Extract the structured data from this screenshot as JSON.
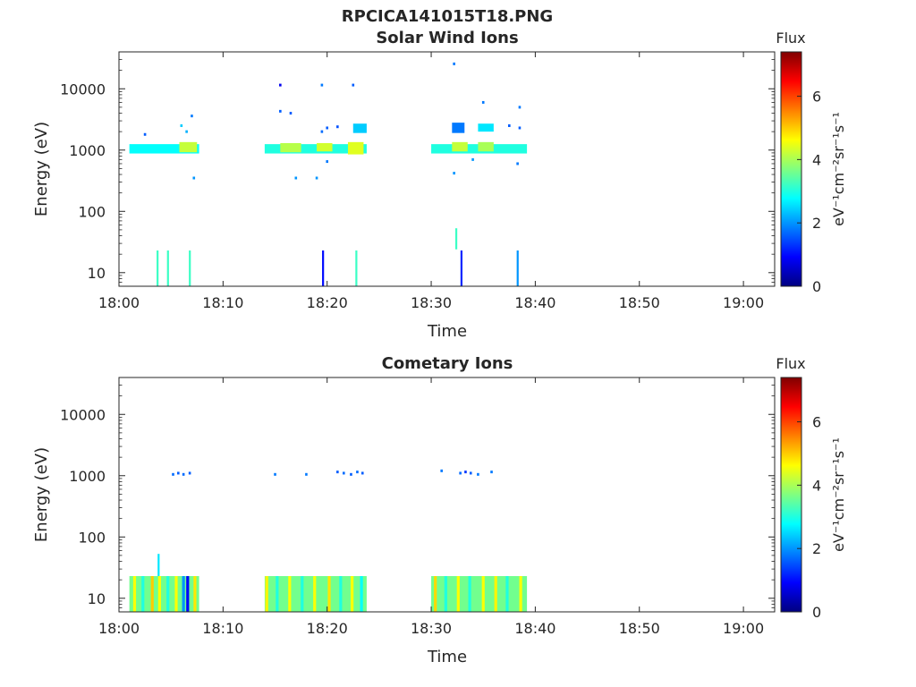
{
  "figure": {
    "title": "RPCICA141015T18.PNG"
  },
  "colormap": {
    "stops": [
      "#000080",
      "#0000ff",
      "#0080ff",
      "#00ffff",
      "#80ff80",
      "#ffff00",
      "#ff8000",
      "#ff0000",
      "#800000"
    ]
  },
  "chart_data": [
    {
      "type": "heatmap",
      "title": "Solar Wind Ions",
      "xlabel": "Time",
      "ylabel": "Energy (eV)",
      "yscale": "log",
      "xlim": [
        "18:00",
        "19:03"
      ],
      "ylim": [
        6,
        40000
      ],
      "xticks": [
        "18:00",
        "18:10",
        "18:20",
        "18:30",
        "18:40",
        "18:50",
        "19:00"
      ],
      "yticks": [
        10,
        100,
        1000,
        10000
      ],
      "ytick_labels": [
        "10",
        "100",
        "1000",
        "10000"
      ],
      "colorbar": {
        "label_top": "Flux",
        "unit": "eV⁻¹cm⁻²sr⁻¹s⁻¹",
        "range": [
          0,
          7.4
        ],
        "ticks": [
          "0",
          "2",
          "4",
          "6"
        ]
      },
      "bands": [
        {
          "t0": "18:01",
          "t1": "18:07.7",
          "emin": 880,
          "emax": 1250,
          "flux": 2.8
        },
        {
          "t0": "18:05.8",
          "t1": "18:07.5",
          "emin": 920,
          "emax": 1350,
          "flux": 4.2
        },
        {
          "t0": "18:14",
          "t1": "18:23.8",
          "emin": 880,
          "emax": 1250,
          "flux": 3.0
        },
        {
          "t0": "18:15.5",
          "t1": "18:17.5",
          "emin": 920,
          "emax": 1300,
          "flux": 4.1
        },
        {
          "t0": "18:19",
          "t1": "18:20.5",
          "emin": 950,
          "emax": 1300,
          "flux": 4.3
        },
        {
          "t0": "18:22",
          "t1": "18:23.5",
          "emin": 850,
          "emax": 1350,
          "flux": 4.4
        },
        {
          "t0": "18:22.5",
          "t1": "18:23.8",
          "emin": 1900,
          "emax": 2700,
          "flux": 2.4
        },
        {
          "t0": "18:30",
          "t1": "18:39.2",
          "emin": 880,
          "emax": 1250,
          "flux": 3.0
        },
        {
          "t0": "18:32",
          "t1": "18:33.5",
          "emin": 950,
          "emax": 1350,
          "flux": 4.2
        },
        {
          "t0": "18:34.5",
          "t1": "18:36",
          "emin": 950,
          "emax": 1350,
          "flux": 4.0
        },
        {
          "t0": "18:34.5",
          "t1": "18:36",
          "emin": 2000,
          "emax": 2700,
          "flux": 2.6
        },
        {
          "t0": "18:32",
          "t1": "18:33.2",
          "emin": 1900,
          "emax": 2800,
          "flux": 1.8
        }
      ],
      "points": [
        {
          "t": "18:02.5",
          "e": 1800,
          "flux": 1.6
        },
        {
          "t": "18:06",
          "e": 2500,
          "flux": 2.4
        },
        {
          "t": "18:06.5",
          "e": 2000,
          "flux": 2.2
        },
        {
          "t": "18:07",
          "e": 3600,
          "flux": 1.8
        },
        {
          "t": "18:07.2",
          "e": 350,
          "flux": 2.0
        },
        {
          "t": "18:15.5",
          "e": 11500,
          "flux": 0.8
        },
        {
          "t": "18:15.5",
          "e": 4300,
          "flux": 1.6
        },
        {
          "t": "18:16.5",
          "e": 4000,
          "flux": 1.6
        },
        {
          "t": "18:17",
          "e": 350,
          "flux": 2.0
        },
        {
          "t": "18:19.5",
          "e": 11500,
          "flux": 1.8
        },
        {
          "t": "18:19.5",
          "e": 2000,
          "flux": 1.7
        },
        {
          "t": "18:20",
          "e": 2300,
          "flux": 1.6
        },
        {
          "t": "18:20",
          "e": 650,
          "flux": 1.8
        },
        {
          "t": "18:19",
          "e": 350,
          "flux": 2.0
        },
        {
          "t": "18:21",
          "e": 2400,
          "flux": 1.5
        },
        {
          "t": "18:22.5",
          "e": 11500,
          "flux": 1.6
        },
        {
          "t": "18:32.2",
          "e": 25500,
          "flux": 1.8
        },
        {
          "t": "18:32.2",
          "e": 420,
          "flux": 2.0
        },
        {
          "t": "18:35",
          "e": 6000,
          "flux": 1.8
        },
        {
          "t": "18:37.5",
          "e": 2500,
          "flux": 1.6
        },
        {
          "t": "18:38.5",
          "e": 5000,
          "flux": 1.8
        },
        {
          "t": "18:38.5",
          "e": 2300,
          "flux": 1.6
        },
        {
          "t": "18:38.3",
          "e": 600,
          "flux": 1.8
        },
        {
          "t": "18:34",
          "e": 700,
          "flux": 2.0
        }
      ],
      "spikes": [
        {
          "t": "18:03.7",
          "emin": 6,
          "emax": 23,
          "flux": 3.2
        },
        {
          "t": "18:04.7",
          "emin": 6,
          "emax": 23,
          "flux": 3.2
        },
        {
          "t": "18:06.8",
          "emin": 6,
          "emax": 23,
          "flux": 3.2
        },
        {
          "t": "18:19.6",
          "emin": 6,
          "emax": 23,
          "flux": 1.0
        },
        {
          "t": "18:22.8",
          "emin": 6,
          "emax": 23,
          "flux": 3.2
        },
        {
          "t": "18:32.4",
          "emin": 24,
          "emax": 53,
          "flux": 3.2
        },
        {
          "t": "18:32.9",
          "emin": 6,
          "emax": 23,
          "flux": 1.2
        },
        {
          "t": "18:38.3",
          "emin": 6,
          "emax": 23,
          "flux": 2.0
        }
      ]
    },
    {
      "type": "heatmap",
      "title": "Cometary Ions",
      "xlabel": "Time",
      "ylabel": "Energy (eV)",
      "yscale": "log",
      "xlim": [
        "18:00",
        "19:03"
      ],
      "ylim": [
        6,
        40000
      ],
      "xticks": [
        "18:00",
        "18:10",
        "18:20",
        "18:30",
        "18:40",
        "18:50",
        "19:00"
      ],
      "yticks": [
        10,
        100,
        1000,
        10000
      ],
      "ytick_labels": [
        "10",
        "100",
        "1000",
        "10000"
      ],
      "colorbar": {
        "label_top": "Flux",
        "unit": "eV⁻¹cm⁻²sr⁻¹s⁻¹",
        "range": [
          0,
          7.4
        ],
        "ticks": [
          "0",
          "2",
          "4",
          "6"
        ]
      },
      "bands": [
        {
          "t0": "18:01",
          "t1": "18:07.7",
          "emin": 6,
          "emax": 23,
          "flux": 3.6
        },
        {
          "t0": "18:14",
          "t1": "18:23.8",
          "emin": 6,
          "emax": 23,
          "flux": 3.6
        },
        {
          "t0": "18:30",
          "t1": "18:39.2",
          "emin": 6,
          "emax": 23,
          "flux": 3.6
        }
      ],
      "stripes": [
        {
          "t": "18:01.5",
          "flux": 4.6
        },
        {
          "t": "18:02.3",
          "flux": 3.0
        },
        {
          "t": "18:03.2",
          "flux": 5.0
        },
        {
          "t": "18:03.9",
          "flux": 4.6
        },
        {
          "t": "18:04.7",
          "flux": 3.0
        },
        {
          "t": "18:05.5",
          "flux": 4.6
        },
        {
          "t": "18:06.2",
          "flux": 2.0
        },
        {
          "t": "18:06.6",
          "flux": 0.9
        },
        {
          "t": "18:07.3",
          "flux": 4.8
        },
        {
          "t": "18:14.2",
          "flux": 4.7
        },
        {
          "t": "18:15.2",
          "flux": 3.0
        },
        {
          "t": "18:16.4",
          "flux": 4.6
        },
        {
          "t": "18:17.6",
          "flux": 3.0
        },
        {
          "t": "18:18.8",
          "flux": 4.6
        },
        {
          "t": "18:20.2",
          "flux": 4.8
        },
        {
          "t": "18:21.3",
          "flux": 3.0
        },
        {
          "t": "18:22.4",
          "flux": 4.6
        },
        {
          "t": "18:23.3",
          "flux": 2.8
        },
        {
          "t": "18:30.4",
          "flux": 4.9
        },
        {
          "t": "18:31.4",
          "flux": 3.0
        },
        {
          "t": "18:32.6",
          "flux": 4.6
        },
        {
          "t": "18:33.7",
          "flux": 3.0
        },
        {
          "t": "18:35.0",
          "flux": 4.6
        },
        {
          "t": "18:36.2",
          "flux": 4.7
        },
        {
          "t": "18:37.3",
          "flux": 3.0
        },
        {
          "t": "18:38.6",
          "flux": 4.6
        }
      ],
      "points": [
        {
          "t": "18:05.2",
          "e": 1050,
          "flux": 1.7
        },
        {
          "t": "18:05.7",
          "e": 1100,
          "flux": 1.6
        },
        {
          "t": "18:06.2",
          "e": 1050,
          "flux": 1.7
        },
        {
          "t": "18:06.8",
          "e": 1100,
          "flux": 1.6
        },
        {
          "t": "18:15",
          "e": 1050,
          "flux": 1.8
        },
        {
          "t": "18:18",
          "e": 1050,
          "flux": 1.8
        },
        {
          "t": "18:21",
          "e": 1150,
          "flux": 1.6
        },
        {
          "t": "18:21.6",
          "e": 1100,
          "flux": 1.7
        },
        {
          "t": "18:22.3",
          "e": 1050,
          "flux": 1.6
        },
        {
          "t": "18:22.9",
          "e": 1150,
          "flux": 1.7
        },
        {
          "t": "18:23.4",
          "e": 1100,
          "flux": 1.6
        },
        {
          "t": "18:31",
          "e": 1200,
          "flux": 1.8
        },
        {
          "t": "18:32.8",
          "e": 1100,
          "flux": 1.7
        },
        {
          "t": "18:33.3",
          "e": 1150,
          "flux": 1.3
        },
        {
          "t": "18:33.8",
          "e": 1100,
          "flux": 1.6
        },
        {
          "t": "18:34.5",
          "e": 1050,
          "flux": 1.8
        },
        {
          "t": "18:35.8",
          "e": 1150,
          "flux": 1.8
        }
      ],
      "spikes": [
        {
          "t": "18:03.8",
          "emin": 23,
          "emax": 53,
          "flux": 2.6
        }
      ]
    }
  ]
}
